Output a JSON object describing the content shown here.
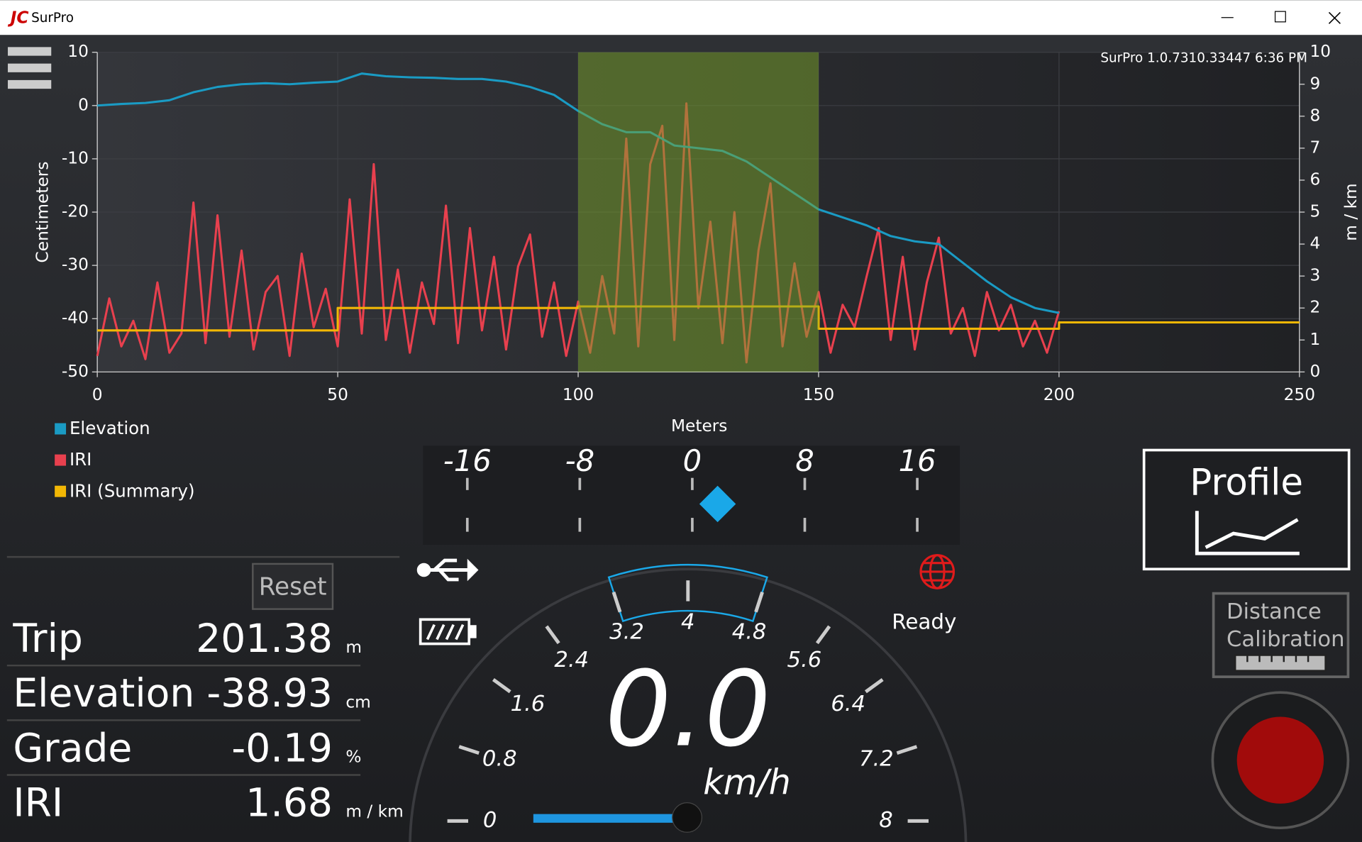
{
  "window": {
    "title": "SurPro"
  },
  "chart_data": {
    "type": "line",
    "version": "SurPro 1.0.7310.33447  6:36 PM",
    "x_label": "Meters",
    "y_label": "Centimeters",
    "y2_label": "m / km",
    "xlim": [
      0,
      250
    ],
    "xticks": [
      0,
      50,
      100,
      150,
      200,
      250
    ],
    "ylim": [
      -50,
      10
    ],
    "yticks": [
      10,
      0,
      -10,
      -20,
      -30,
      -40,
      -50
    ],
    "y2lim": [
      0,
      10
    ],
    "y2ticks": [
      10,
      9,
      8,
      7,
      6,
      5,
      4,
      3,
      2,
      1,
      0
    ],
    "highlight": [
      100,
      150
    ],
    "series": [
      {
        "name": "Elevation",
        "color": "#1a9bc4",
        "x": [
          0,
          5,
          10,
          15,
          20,
          25,
          30,
          35,
          40,
          45,
          50,
          55,
          60,
          65,
          70,
          75,
          80,
          85,
          90,
          95,
          100,
          105,
          110,
          115,
          120,
          125,
          130,
          135,
          140,
          145,
          150,
          155,
          160,
          165,
          170,
          175,
          180,
          185,
          190,
          195,
          200
        ],
        "values": [
          0,
          0.3,
          0.5,
          1,
          2.5,
          3.5,
          4,
          4.2,
          4,
          4.3,
          4.5,
          6,
          5.5,
          5.3,
          5.2,
          5,
          5,
          4.5,
          3.5,
          2,
          -1,
          -3.5,
          -5,
          -5,
          -7.5,
          -8,
          -8.5,
          -10.5,
          -13.5,
          -16.5,
          -19.5,
          -21,
          -22.5,
          -24.5,
          -25.5,
          -26,
          -29.5,
          -33,
          -36,
          -38,
          -38.93
        ]
      },
      {
        "name": "IRI",
        "color": "#e8404e",
        "axis": "y2",
        "x": [
          0,
          2.5,
          5,
          7.5,
          10,
          12.5,
          15,
          17.5,
          20,
          22.5,
          25,
          27.5,
          30,
          32.5,
          35,
          37.5,
          40,
          42.5,
          45,
          47.5,
          50,
          52.5,
          55,
          57.5,
          60,
          62.5,
          65,
          67.5,
          70,
          72.5,
          75,
          77.5,
          80,
          82.5,
          85,
          87.5,
          90,
          92.5,
          95,
          97.5,
          100,
          102.5,
          105,
          107.5,
          110,
          112.5,
          115,
          117.5,
          120,
          122.5,
          125,
          127.5,
          130,
          132.5,
          135,
          137.5,
          140,
          142.5,
          145,
          147.5,
          150,
          152.5,
          155,
          157.5,
          160,
          162.5,
          165,
          167.5,
          170,
          172.5,
          175,
          177.5,
          180,
          182.5,
          185,
          187.5,
          190,
          192.5,
          195,
          197.5,
          200
        ],
        "values": [
          0.5,
          2.3,
          0.8,
          1.6,
          0.4,
          2.8,
          0.6,
          1.2,
          5.3,
          0.9,
          4.9,
          1.1,
          3.8,
          0.7,
          2.5,
          3.0,
          0.5,
          3.7,
          1.4,
          2.6,
          0.8,
          5.4,
          1.2,
          6.5,
          1.0,
          3.2,
          0.6,
          2.8,
          1.5,
          5.2,
          0.9,
          4.5,
          1.3,
          3.6,
          0.7,
          3.3,
          4.3,
          1.1,
          2.8,
          0.5,
          2.2,
          0.6,
          3.0,
          1.2,
          7.3,
          0.8,
          6.5,
          7.7,
          1.0,
          8.4,
          2.0,
          4.7,
          0.9,
          5.0,
          0.3,
          3.8,
          5.9,
          0.8,
          3.4,
          1.1,
          2.5,
          0.6,
          2.1,
          1.4,
          3.0,
          4.5,
          1.0,
          3.6,
          0.7,
          2.8,
          4.2,
          1.2,
          2.0,
          0.5,
          2.5,
          1.3,
          2.1,
          0.8,
          1.6,
          0.6,
          1.9
        ]
      },
      {
        "name": "IRI (Summary)",
        "color": "#f2b705",
        "axis": "y2",
        "x": [
          0,
          50,
          50,
          100,
          100,
          150,
          150,
          200,
          200,
          250
        ],
        "values": [
          1.3,
          1.3,
          2.0,
          2.0,
          2.05,
          2.05,
          1.35,
          1.35,
          1.55,
          1.55
        ]
      }
    ]
  },
  "tilt": {
    "ticks": [
      -16,
      -8,
      0,
      8,
      16
    ],
    "value": 1.8
  },
  "gauge": {
    "ticks": [
      0,
      0.8,
      1.6,
      2.4,
      3.2,
      4,
      4.8,
      5.6,
      6.4,
      7.2,
      8
    ],
    "highlight": [
      3.2,
      4.8
    ],
    "speed": "0.0",
    "unit": "km/h"
  },
  "status": "Ready",
  "buttons": {
    "reset": "Reset",
    "profile": "Profile",
    "calibration": [
      "Distance",
      "Calibration"
    ]
  },
  "stats": [
    {
      "label": "Trip",
      "value": "201.38",
      "unit": "m"
    },
    {
      "label": "Elevation",
      "value": "-38.93",
      "unit": "cm"
    },
    {
      "label": "Grade",
      "value": "-0.19",
      "unit": "%"
    },
    {
      "label": "IRI",
      "value": "1.68",
      "unit": "m / km"
    }
  ]
}
